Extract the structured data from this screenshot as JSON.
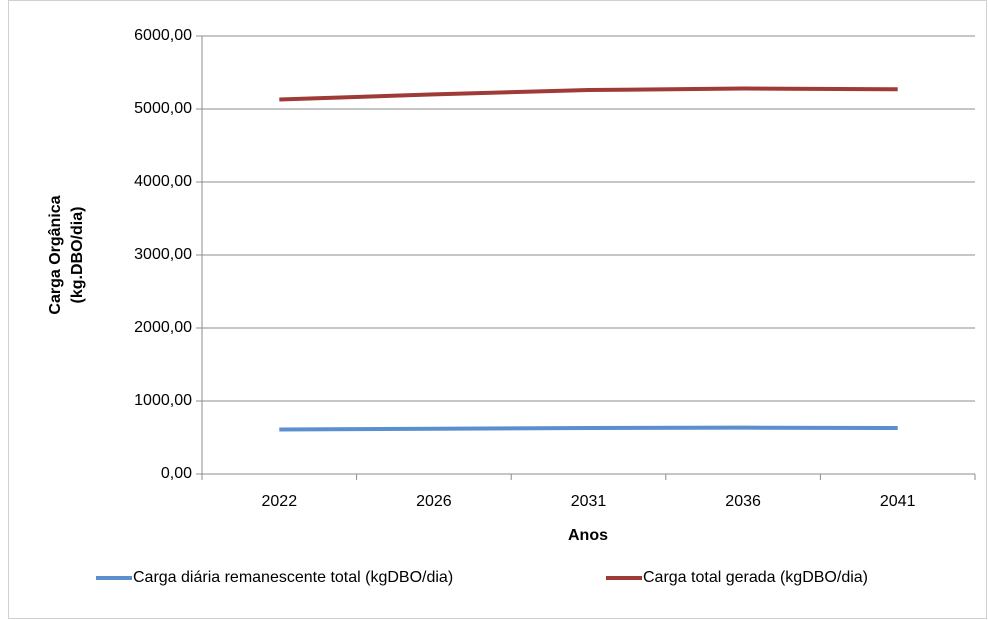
{
  "chart_data": {
    "type": "line",
    "x_label": "Anos",
    "y_label": [
      "Carga Orgânica",
      "(kg.DBO/dia)"
    ],
    "categories": [
      "2022",
      "2026",
      "2031",
      "2036",
      "2041"
    ],
    "series": [
      {
        "name": "Carga diária remanescente total (kgDBO/dia)",
        "color": "#5b8fd0",
        "values": [
          610,
          620,
          630,
          635,
          630
        ]
      },
      {
        "name": "Carga total gerada (kgDBO/dia)",
        "color": "#9e3a37",
        "values": [
          5130,
          5200,
          5260,
          5280,
          5270
        ]
      }
    ],
    "ylim": [
      0,
      6000
    ],
    "yticks": [
      {
        "value": 0,
        "label": "0,00"
      },
      {
        "value": 1000,
        "label": "1000,00"
      },
      {
        "value": 2000,
        "label": "2000,00"
      },
      {
        "value": 3000,
        "label": "3000,00"
      },
      {
        "value": 4000,
        "label": "4000,00"
      },
      {
        "value": 5000,
        "label": "5000,00"
      },
      {
        "value": 6000,
        "label": "6000,00"
      }
    ],
    "grid": true,
    "legend": "bottom"
  }
}
